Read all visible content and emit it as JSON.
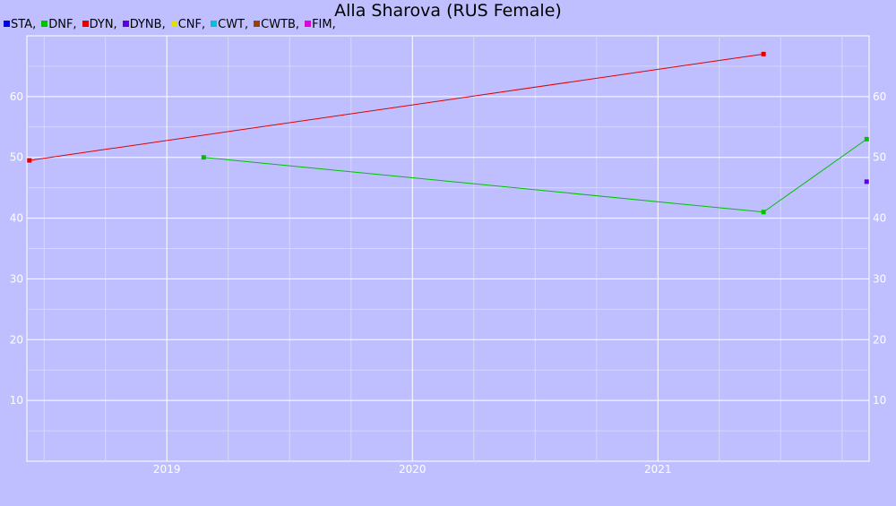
{
  "chart_data": {
    "type": "line",
    "title": "Alla Sharova (RUS Female)",
    "legend": {
      "placement": "top-left",
      "items": [
        {
          "label": "STA,",
          "color": "#0000e0"
        },
        {
          "label": "DNF,",
          "color": "#00c000"
        },
        {
          "label": "DYN,",
          "color": "#e00000"
        },
        {
          "label": "DYNB,",
          "color": "#6000e0"
        },
        {
          "label": "CNF,",
          "color": "#e0e000"
        },
        {
          "label": "CWT,",
          "color": "#00c0e0"
        },
        {
          "label": "CWTB,",
          "color": "#a04000"
        },
        {
          "label": "FIM,",
          "color": "#e000e0"
        }
      ]
    },
    "xlim": [
      2018.43,
      2021.86
    ],
    "ylim": [
      0,
      70
    ],
    "x_ticks": [
      {
        "value": 2019,
        "label": "2019"
      },
      {
        "value": 2020,
        "label": "2020"
      },
      {
        "value": 2021,
        "label": "2021"
      }
    ],
    "y_ticks": [
      {
        "value": 10,
        "label": "10"
      },
      {
        "value": 20,
        "label": "20"
      },
      {
        "value": 30,
        "label": "30"
      },
      {
        "value": 40,
        "label": "40"
      },
      {
        "value": 50,
        "label": "50"
      },
      {
        "value": 60,
        "label": "60"
      }
    ],
    "grid": true,
    "series": [
      {
        "name": "DYN,",
        "color": "#e00000",
        "points": [
          [
            2018.44,
            49.5
          ],
          [
            2021.43,
            67
          ]
        ]
      },
      {
        "name": "DNF,",
        "color": "#00c000",
        "points": [
          [
            2019.15,
            50
          ],
          [
            2021.43,
            41
          ],
          [
            2021.85,
            53
          ]
        ]
      },
      {
        "name": "DYNB,",
        "color": "#6000e0",
        "points": [
          [
            2021.85,
            46
          ]
        ]
      }
    ]
  }
}
